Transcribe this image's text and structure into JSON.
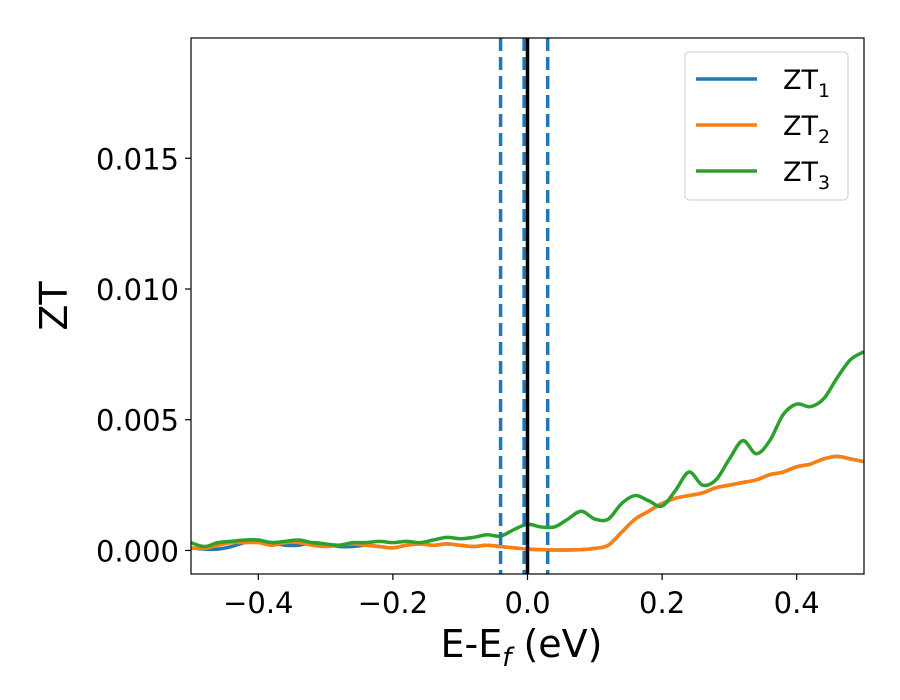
{
  "chart_data": {
    "type": "line",
    "title": "",
    "xlabel": {
      "main": "E-E",
      "sub": "f",
      "unit": " (eV)"
    },
    "ylabel": "ZT",
    "xlim": [
      -0.5,
      0.5
    ],
    "ylim": [
      -0.0009,
      0.0196
    ],
    "x_ticks": [
      -0.4,
      -0.2,
      0.0,
      0.2,
      0.4
    ],
    "x_tick_labels": [
      "−0.4",
      "−0.2",
      "0.0",
      "0.2",
      "0.4"
    ],
    "y_ticks": [
      0.0,
      0.005,
      0.01,
      0.015
    ],
    "y_tick_labels": [
      "0.000",
      "0.005",
      "0.010",
      "0.015"
    ],
    "grid": false,
    "legend_position": "top-right",
    "vlines": [
      {
        "x": -0.04,
        "style": "dashed",
        "color": "#1f77b4"
      },
      {
        "x": -0.005,
        "style": "dashed",
        "color": "#1f77b4"
      },
      {
        "x": 0.03,
        "style": "dashed",
        "color": "#1f77b4"
      },
      {
        "x": 0.0,
        "style": "solid",
        "color": "#000000"
      }
    ],
    "series": [
      {
        "name": "ZT1",
        "label_main": "ZT",
        "label_sub": "1",
        "color": "#1f77b4",
        "x": [
          -0.5,
          -0.48,
          -0.46,
          -0.44,
          -0.42,
          -0.4,
          -0.38,
          -0.36,
          -0.34,
          -0.32,
          -0.3,
          -0.28,
          -0.26,
          -0.24,
          -0.22,
          -0.2,
          -0.18,
          -0.16,
          -0.14,
          -0.12,
          -0.1,
          -0.08,
          -0.06,
          -0.04,
          -0.02,
          0.0,
          0.02,
          0.04,
          0.06,
          0.08,
          0.1,
          0.12,
          0.14,
          0.16,
          0.18,
          0.2,
          0.22,
          0.24,
          0.26,
          0.28,
          0.3,
          0.32,
          0.34,
          0.36,
          0.38,
          0.4,
          0.42,
          0.44,
          0.46,
          0.48,
          0.5
        ],
        "y": [
          0.0001,
          5e-05,
          5e-05,
          0.00015,
          0.0003,
          0.00035,
          0.0003,
          0.0002,
          0.0002,
          0.0003,
          0.00025,
          0.00015,
          0.00015,
          0.0002,
          0.00015,
          0.0001,
          0.0002,
          0.00025,
          0.0002,
          0.00025,
          0.0002,
          0.00015,
          0.0002,
          0.00015,
          0.0001,
          5e-05,
          3e-05,
          2e-05,
          2e-05,
          3e-05,
          8e-05,
          0.0002,
          0.0007,
          0.0012,
          0.0015,
          0.0018,
          0.002,
          0.0021,
          0.0022,
          0.0024,
          0.0025,
          0.0026,
          0.0027,
          0.0029,
          0.003,
          0.0032,
          0.0033,
          0.0035,
          0.0036,
          0.0035,
          0.0034
        ]
      },
      {
        "name": "ZT2",
        "label_main": "ZT",
        "label_sub": "2",
        "color": "#ff7f0e",
        "x": [
          -0.5,
          -0.48,
          -0.46,
          -0.44,
          -0.42,
          -0.4,
          -0.38,
          -0.36,
          -0.34,
          -0.32,
          -0.3,
          -0.28,
          -0.26,
          -0.24,
          -0.22,
          -0.2,
          -0.18,
          -0.16,
          -0.14,
          -0.12,
          -0.1,
          -0.08,
          -0.06,
          -0.04,
          -0.02,
          0.0,
          0.02,
          0.04,
          0.06,
          0.08,
          0.1,
          0.12,
          0.14,
          0.16,
          0.18,
          0.2,
          0.22,
          0.24,
          0.26,
          0.28,
          0.3,
          0.32,
          0.34,
          0.36,
          0.38,
          0.4,
          0.42,
          0.44,
          0.46,
          0.48,
          0.5
        ],
        "y": [
          0.0001,
          8e-05,
          0.0002,
          0.0003,
          0.0003,
          0.0003,
          0.0002,
          0.0003,
          0.0003,
          0.0002,
          0.00015,
          0.0002,
          0.00025,
          0.0002,
          0.00015,
          0.0001,
          0.0002,
          0.00025,
          0.0002,
          0.00025,
          0.0002,
          0.00015,
          0.0002,
          0.00015,
          0.0001,
          5e-05,
          3e-05,
          2e-05,
          2e-05,
          3e-05,
          8e-05,
          0.0002,
          0.0007,
          0.0012,
          0.0015,
          0.0018,
          0.002,
          0.0021,
          0.0022,
          0.0024,
          0.0025,
          0.0026,
          0.0027,
          0.0029,
          0.003,
          0.0032,
          0.0033,
          0.0035,
          0.0036,
          0.0035,
          0.0034
        ]
      },
      {
        "name": "ZT3",
        "label_main": "ZT",
        "label_sub": "3",
        "color": "#2ca02c",
        "x": [
          -0.5,
          -0.48,
          -0.46,
          -0.44,
          -0.42,
          -0.4,
          -0.38,
          -0.36,
          -0.34,
          -0.32,
          -0.3,
          -0.28,
          -0.26,
          -0.24,
          -0.22,
          -0.2,
          -0.18,
          -0.16,
          -0.14,
          -0.12,
          -0.1,
          -0.08,
          -0.06,
          -0.04,
          -0.02,
          0.0,
          0.02,
          0.04,
          0.06,
          0.08,
          0.1,
          0.12,
          0.14,
          0.16,
          0.18,
          0.2,
          0.22,
          0.24,
          0.26,
          0.28,
          0.3,
          0.32,
          0.34,
          0.36,
          0.38,
          0.4,
          0.42,
          0.44,
          0.46,
          0.48,
          0.5
        ],
        "y": [
          0.0003,
          0.00015,
          0.0003,
          0.00035,
          0.0004,
          0.0004,
          0.0003,
          0.00035,
          0.0004,
          0.0003,
          0.00025,
          0.0002,
          0.0003,
          0.0003,
          0.00035,
          0.0003,
          0.00035,
          0.0003,
          0.0004,
          0.0005,
          0.00045,
          0.0005,
          0.0006,
          0.00055,
          0.0008,
          0.001,
          0.0009,
          0.0009,
          0.0012,
          0.0015,
          0.0012,
          0.0012,
          0.0018,
          0.0021,
          0.0019,
          0.0017,
          0.0023,
          0.003,
          0.0025,
          0.0027,
          0.0035,
          0.0042,
          0.0037,
          0.0042,
          0.0052,
          0.0056,
          0.0055,
          0.0058,
          0.0066,
          0.0073,
          0.0076
        ]
      }
    ]
  }
}
